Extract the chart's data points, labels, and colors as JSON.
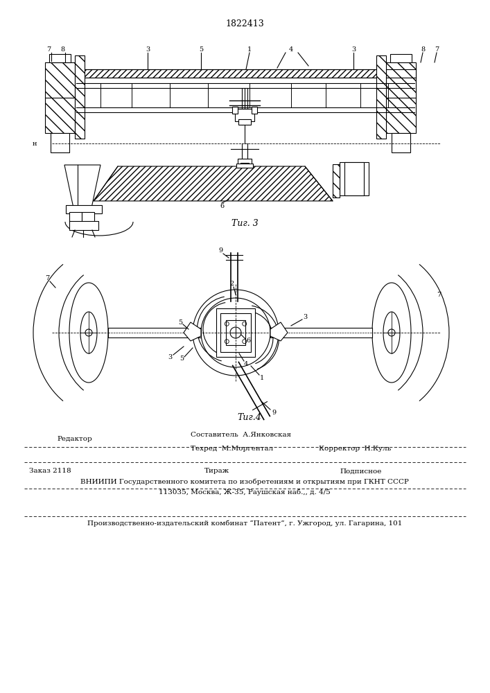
{
  "patent_number": "1822413",
  "fig3_caption": "Τиг. 3",
  "fig4_caption": "Τиг.4",
  "editor_label": "Редактор",
  "order_label": "Заказ 2118",
  "tirazh_label": "Тираж",
  "podpisnoe_label": "Подписное",
  "vniipи_line": "ВНИИПИ Государственного комитета по изобретениям и открытиям при ГКНТ СССР",
  "address_line": "113035, Москва, Ж-35, Раушская наб.,, д. 4/5",
  "production_line": "Производственно-издательский комбинат “Патент”, г. Ужгород, ул. Гагарина, 101",
  "bg_color": "#ffffff",
  "line_color": "#000000"
}
